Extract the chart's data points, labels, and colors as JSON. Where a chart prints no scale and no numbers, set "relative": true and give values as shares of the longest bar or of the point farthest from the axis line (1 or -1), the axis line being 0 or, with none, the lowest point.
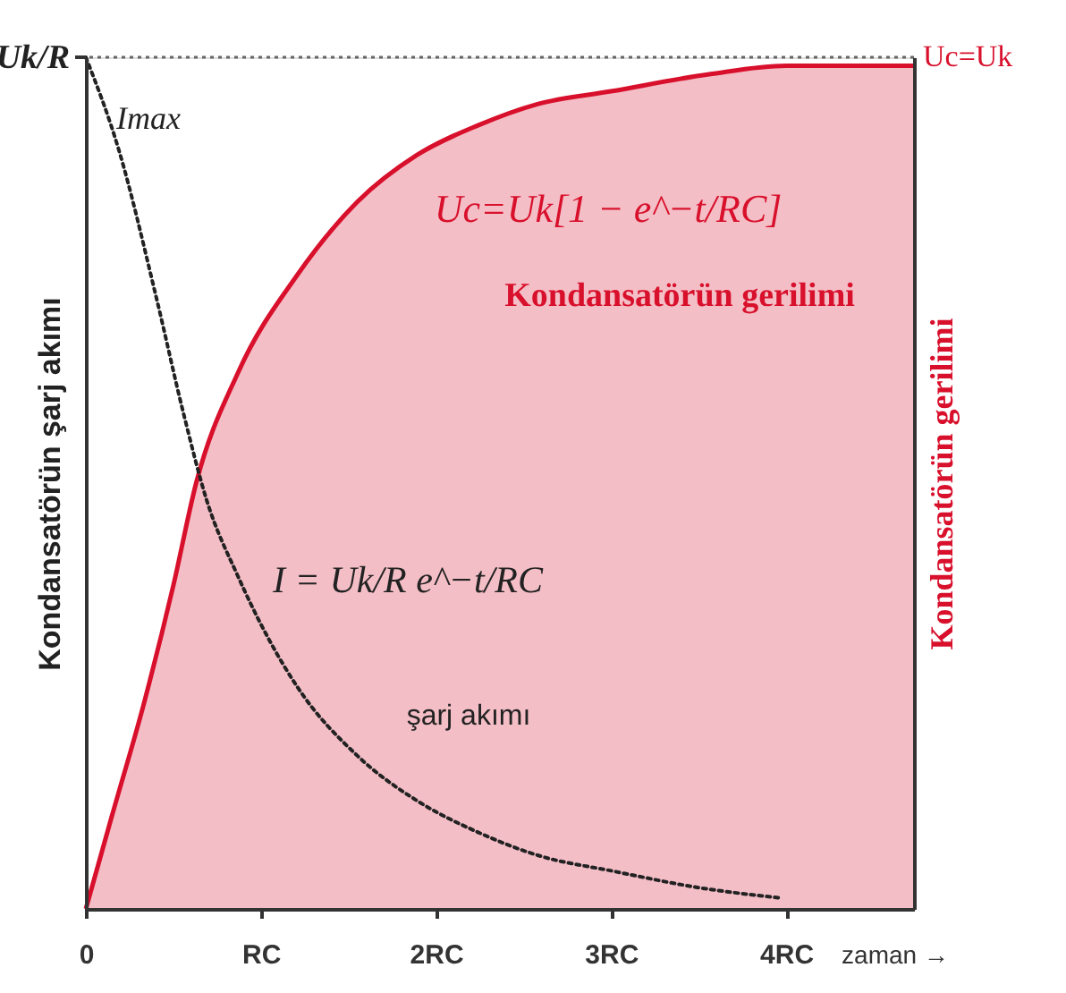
{
  "chart_data": {
    "type": "area",
    "relative": true,
    "tick_labels": "x",
    "xlabel": "zaman →",
    "ylabel": "Kondansatörün şarj akımı",
    "y2label": "Kondansatörün gerilimi",
    "xlim": [
      0,
      4.73
    ],
    "xticks": [
      0,
      {
        "value": 1,
        "label": "RC"
      },
      {
        "value": 2,
        "label": "2RC"
      },
      {
        "value": 3,
        "label": "3RC"
      },
      {
        "value": 4,
        "label": "4RC"
      }
    ],
    "series": [
      {
        "name": "Kondansatörün gerilimi",
        "axis": "y2",
        "color": "#d8102c",
        "x": [
          0,
          0.15,
          0.33,
          0.5,
          0.63,
          0.87,
          1.21,
          1.55,
          1.89,
          2.24,
          2.58,
          3.0,
          3.56,
          4.0,
          4.73
        ],
        "values": [
          0,
          0.11,
          0.24,
          0.38,
          0.5,
          0.63,
          0.745,
          0.83,
          0.885,
          0.92,
          0.945,
          0.96,
          0.98,
          0.99,
          0.99
        ]
      },
      {
        "name": "şarj akımı",
        "type": "line",
        "line_style": "dotted",
        "color": "#222222",
        "x": [
          0,
          0.19,
          0.4,
          0.56,
          0.69,
          0.87,
          1.21,
          1.55,
          1.9,
          2.24,
          2.58,
          3.02,
          3.5,
          3.96
        ],
        "values": [
          1,
          0.89,
          0.72,
          0.58,
          0.48,
          0.39,
          0.26,
          0.18,
          0.126,
          0.09,
          0.063,
          0.044,
          0.025,
          0.013
        ]
      }
    ],
    "ref_lines": [
      {
        "axis": "y",
        "value": 1,
        "line_style": "dotted",
        "color": "#666666"
      }
    ],
    "annotations": [
      {
        "text": "Uk/R",
        "x": 0,
        "y": 1
      },
      "Imax",
      {
        "text": "Uc=Uk",
        "x": 4.73,
        "y": 1
      },
      "Uc=Uk[1 − e^−t/RC]",
      "I = Uk/R e^−t/RC"
    ]
  }
}
